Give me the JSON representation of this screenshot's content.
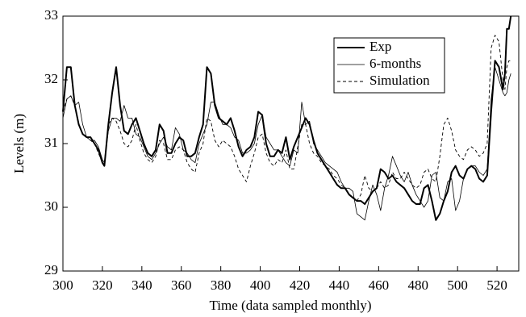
{
  "chart_data": {
    "type": "line",
    "xlabel": "Time (data sampled monthly)",
    "ylabel": "Levels (m)",
    "xlim": [
      300,
      531
    ],
    "ylim": [
      29,
      33
    ],
    "xticks": [
      300,
      320,
      340,
      360,
      380,
      400,
      420,
      440,
      460,
      480,
      500,
      520
    ],
    "yticks": [
      29,
      30,
      31,
      32,
      33
    ],
    "legend": "upper right",
    "x": [
      300,
      302,
      304,
      306,
      308,
      310,
      312,
      314,
      316,
      318,
      320,
      321,
      323,
      325,
      327,
      329,
      331,
      333,
      335,
      337,
      339,
      341,
      343,
      345,
      347,
      349,
      351,
      353,
      355,
      357,
      359,
      361,
      363,
      365,
      367,
      369,
      371,
      373,
      375,
      377,
      379,
      381,
      383,
      385,
      387,
      389,
      391,
      393,
      395,
      397,
      399,
      401,
      403,
      405,
      407,
      409,
      411,
      413,
      415,
      417,
      419,
      421,
      423,
      425,
      427,
      429,
      431,
      433,
      435,
      437,
      439,
      441,
      443,
      445,
      447,
      449,
      451,
      453,
      455,
      457,
      459,
      461,
      463,
      465,
      467,
      469,
      471,
      473,
      475,
      477,
      479,
      481,
      483,
      485,
      487,
      489,
      491,
      493,
      495,
      497,
      499,
      501,
      503,
      505,
      507,
      509,
      511,
      513,
      515,
      517,
      519,
      521,
      523,
      524,
      525,
      526,
      527
    ],
    "series": [
      {
        "name": "Exp",
        "color": "#000000",
        "linewidth": 2,
        "linestyle": "solid",
        "values": [
          31.5,
          32.2,
          32.2,
          31.6,
          31.3,
          31.15,
          31.1,
          31.1,
          31.0,
          30.9,
          30.7,
          30.65,
          31.3,
          31.8,
          32.2,
          31.6,
          31.2,
          31.15,
          31.3,
          31.4,
          31.2,
          31.0,
          30.85,
          30.8,
          30.9,
          31.3,
          31.2,
          30.85,
          30.85,
          31.0,
          31.1,
          31.05,
          30.8,
          30.8,
          30.85,
          31.1,
          31.3,
          32.2,
          32.1,
          31.6,
          31.4,
          31.35,
          31.3,
          31.4,
          31.2,
          30.95,
          30.8,
          30.9,
          30.95,
          31.1,
          31.5,
          31.45,
          31.0,
          30.8,
          30.8,
          30.9,
          30.85,
          31.1,
          30.75,
          30.95,
          31.1,
          31.25,
          31.4,
          31.3,
          31.05,
          30.85,
          30.75,
          30.65,
          30.55,
          30.45,
          30.35,
          30.3,
          30.3,
          30.2,
          30.15,
          30.1,
          30.1,
          30.05,
          30.15,
          30.25,
          30.3,
          30.6,
          30.55,
          30.45,
          30.5,
          30.4,
          30.35,
          30.3,
          30.2,
          30.1,
          30.05,
          30.05,
          30.3,
          30.35,
          30.1,
          29.8,
          29.9,
          30.1,
          30.25,
          30.55,
          30.65,
          30.5,
          30.45,
          30.6,
          30.65,
          30.6,
          30.45,
          30.4,
          30.5,
          31.5,
          32.3,
          32.2,
          31.85,
          32.1,
          32.8,
          32.8,
          33.0
        ]
      },
      {
        "name": "6-months",
        "color": "#000000",
        "linewidth": 0.8,
        "linestyle": "solid",
        "values": [
          31.4,
          31.7,
          31.75,
          31.6,
          31.65,
          31.3,
          31.1,
          31.05,
          31.05,
          30.95,
          30.75,
          30.7,
          31.2,
          31.4,
          31.4,
          31.35,
          31.6,
          31.4,
          31.4,
          31.15,
          31.1,
          30.95,
          30.8,
          30.75,
          30.85,
          31.0,
          31.1,
          30.95,
          30.9,
          31.25,
          31.15,
          30.9,
          30.85,
          30.75,
          30.7,
          31.0,
          31.15,
          31.3,
          31.65,
          31.65,
          31.45,
          31.3,
          31.3,
          31.25,
          31.1,
          31.05,
          30.85,
          30.85,
          30.9,
          31.0,
          31.3,
          31.45,
          31.1,
          31.0,
          30.9,
          30.9,
          30.8,
          30.7,
          30.65,
          30.9,
          30.85,
          31.65,
          31.3,
          31.35,
          31.0,
          30.9,
          30.8,
          30.7,
          30.65,
          30.6,
          30.55,
          30.4,
          30.3,
          30.3,
          30.25,
          29.9,
          29.85,
          29.8,
          30.1,
          30.35,
          30.2,
          29.95,
          30.3,
          30.5,
          30.8,
          30.65,
          30.5,
          30.4,
          30.55,
          30.35,
          30.2,
          30.1,
          30.0,
          30.1,
          30.5,
          30.55,
          30.15,
          30.1,
          30.4,
          30.45,
          29.95,
          30.1,
          30.45,
          30.6,
          30.65,
          30.65,
          30.55,
          30.5,
          30.6,
          31.7,
          32.2,
          32.0,
          31.8,
          31.75,
          31.8,
          32.0,
          32.1
        ]
      },
      {
        "name": "Simulation",
        "color": "#000000",
        "linewidth": 0.9,
        "linestyle": "dashed",
        "values": [
          31.5,
          31.7,
          31.75,
          31.6,
          31.3,
          31.15,
          31.1,
          31.05,
          31.0,
          30.85,
          30.7,
          30.7,
          31.3,
          31.4,
          31.35,
          31.2,
          31.0,
          30.95,
          31.05,
          31.3,
          31.05,
          30.85,
          30.75,
          30.7,
          30.8,
          31.05,
          31.0,
          30.75,
          30.75,
          30.9,
          30.95,
          30.9,
          30.7,
          30.6,
          30.55,
          30.85,
          31.0,
          31.4,
          31.35,
          31.05,
          30.95,
          31.05,
          31.0,
          30.95,
          30.8,
          30.6,
          30.5,
          30.4,
          30.65,
          30.85,
          31.1,
          31.15,
          30.85,
          30.7,
          30.65,
          30.75,
          30.7,
          30.9,
          30.6,
          30.6,
          30.95,
          31.3,
          31.3,
          31.0,
          30.85,
          30.8,
          30.7,
          30.65,
          30.6,
          30.5,
          30.45,
          30.35,
          30.3,
          30.2,
          30.15,
          30.1,
          30.2,
          30.5,
          30.3,
          30.25,
          30.3,
          30.4,
          30.3,
          30.35,
          30.55,
          30.45,
          30.45,
          30.55,
          30.45,
          30.35,
          30.3,
          30.35,
          30.55,
          30.6,
          30.45,
          30.4,
          30.8,
          31.3,
          31.4,
          31.2,
          30.9,
          30.8,
          30.75,
          30.9,
          30.95,
          30.9,
          30.8,
          30.85,
          31.0,
          32.5,
          32.7,
          32.6,
          32.0,
          31.85,
          32.2,
          32.3,
          32.3
        ]
      }
    ]
  }
}
